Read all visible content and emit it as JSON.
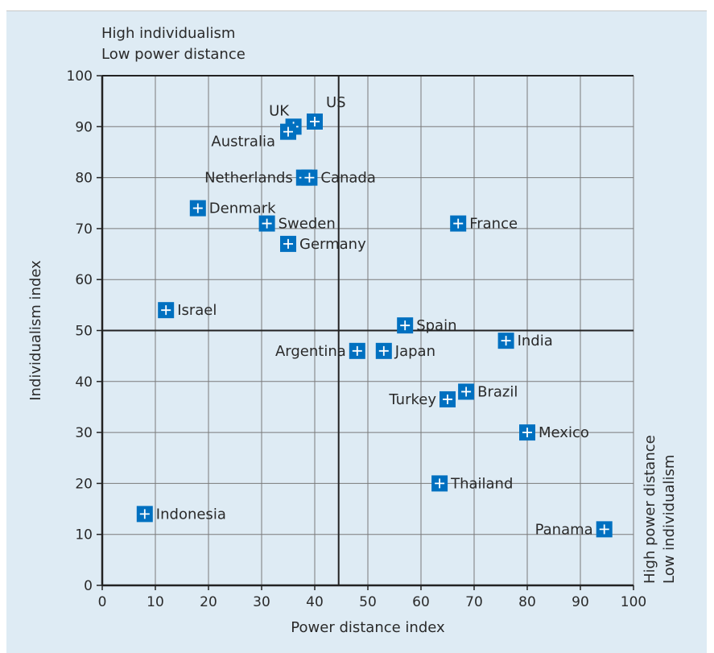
{
  "chart_data": {
    "type": "scatter",
    "title": "",
    "xlabel": "Power distance index",
    "ylabel": "Individualism index",
    "xlim": [
      0,
      100
    ],
    "ylim": [
      0,
      100
    ],
    "xticks": [
      0,
      10,
      20,
      30,
      40,
      50,
      60,
      70,
      80,
      90,
      100
    ],
    "yticks": [
      0,
      10,
      20,
      30,
      40,
      50,
      60,
      70,
      80,
      90,
      100
    ],
    "grid": true,
    "quadrant_lines": {
      "x": 44.5,
      "y": 50
    },
    "annotations": {
      "top_left": [
        "High individualism",
        "Low power distance"
      ],
      "bottom_right": [
        "High power distance",
        "Low individualism"
      ]
    },
    "marker_color": "#0070c0",
    "points": [
      {
        "label": "UK",
        "x": 36,
        "y": 90
      },
      {
        "label": "Australia",
        "x": 35,
        "y": 89
      },
      {
        "label": "US",
        "x": 40,
        "y": 91
      },
      {
        "label": "Netherlands",
        "x": 38,
        "y": 80
      },
      {
        "label": "Canada",
        "x": 39,
        "y": 80
      },
      {
        "label": "Denmark",
        "x": 18,
        "y": 74
      },
      {
        "label": "Sweden",
        "x": 31,
        "y": 71
      },
      {
        "label": "Germany",
        "x": 35,
        "y": 67
      },
      {
        "label": "France",
        "x": 67,
        "y": 71
      },
      {
        "label": "Israel",
        "x": 12,
        "y": 54
      },
      {
        "label": "Spain",
        "x": 57,
        "y": 51
      },
      {
        "label": "India",
        "x": 76,
        "y": 48
      },
      {
        "label": "Argentina",
        "x": 48,
        "y": 46
      },
      {
        "label": "Japan",
        "x": 53,
        "y": 46
      },
      {
        "label": "Brazil",
        "x": 68.5,
        "y": 38
      },
      {
        "label": "Turkey",
        "x": 65,
        "y": 36.5
      },
      {
        "label": "Mexico",
        "x": 80,
        "y": 30
      },
      {
        "label": "Thailand",
        "x": 63.5,
        "y": 20
      },
      {
        "label": "Indonesia",
        "x": 8,
        "y": 14
      },
      {
        "label": "Panama",
        "x": 94.5,
        "y": 11
      }
    ]
  }
}
